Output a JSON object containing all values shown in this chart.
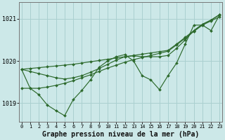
{
  "background_color": "#cce8e8",
  "grid_color": "#aad0d0",
  "line_color": "#2d6a2d",
  "xlabel": "Graphe pression niveau de la mer (hPa)",
  "xlabel_fontsize": 7,
  "ylabel_ticks": [
    1019,
    1020,
    1021
  ],
  "xlim": [
    -0.3,
    23.3
  ],
  "ylim": [
    1018.55,
    1021.4
  ],
  "xticks": [
    0,
    1,
    2,
    3,
    4,
    5,
    6,
    7,
    8,
    9,
    10,
    11,
    12,
    13,
    14,
    15,
    16,
    17,
    18,
    19,
    20,
    21,
    22,
    23
  ],
  "line1_y": [
    1019.8,
    1019.35,
    1019.2,
    1018.95,
    1018.82,
    1018.7,
    1019.08,
    1019.3,
    1019.55,
    1019.85,
    1020.0,
    1020.1,
    1020.15,
    1020.0,
    1019.65,
    1019.55,
    1019.32,
    1019.65,
    1019.95,
    1020.4,
    1020.85,
    1020.85,
    1020.72,
    1021.1
  ],
  "line2_y": [
    1019.35,
    1019.35,
    1019.35,
    1019.38,
    1019.42,
    1019.47,
    1019.53,
    1019.6,
    1019.67,
    1019.75,
    1019.83,
    1019.9,
    1019.97,
    1020.03,
    1020.08,
    1020.13,
    1020.18,
    1020.23,
    1020.38,
    1020.54,
    1020.7,
    1020.85,
    1020.95,
    1021.05
  ],
  "line3_y": [
    1019.8,
    1019.82,
    1019.84,
    1019.86,
    1019.88,
    1019.9,
    1019.92,
    1019.95,
    1019.98,
    1020.01,
    1020.04,
    1020.07,
    1020.1,
    1020.13,
    1020.16,
    1020.19,
    1020.22,
    1020.25,
    1020.4,
    1020.56,
    1020.72,
    1020.87,
    1020.97,
    1021.1
  ],
  "line4_y": [
    1019.8,
    1019.75,
    1019.7,
    1019.65,
    1019.6,
    1019.57,
    1019.6,
    1019.65,
    1019.73,
    1019.82,
    1019.92,
    1020.02,
    1020.1,
    1020.12,
    1020.1,
    1020.1,
    1020.1,
    1020.13,
    1020.3,
    1020.5,
    1020.72,
    1020.87,
    1020.97,
    1021.1
  ]
}
